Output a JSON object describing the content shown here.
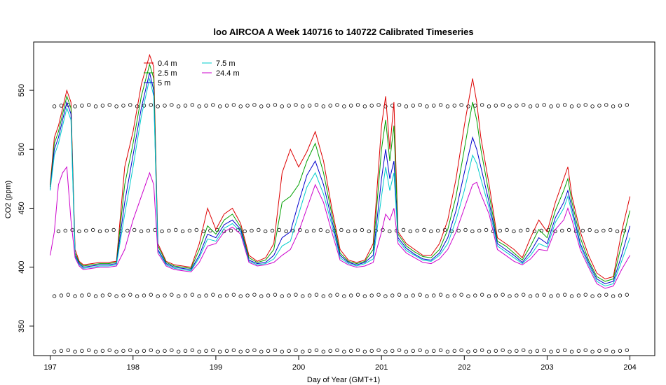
{
  "chart_data": {
    "type": "line",
    "title": "loo AIRCOA A  Week 140716 to 140722  Calibrated Timeseries",
    "xlabel": "Day of Year (GMT+1)",
    "ylabel": "CO2 (ppm)",
    "xlim": [
      196.8,
      204.3
    ],
    "ylim": [
      325,
      591
    ],
    "x_ticks": [
      "197",
      "198",
      "199",
      "200",
      "201",
      "202",
      "203",
      "204"
    ],
    "y_ticks": [
      "350",
      "400",
      "450",
      "500",
      "550"
    ],
    "x_tick_values": [
      197,
      198,
      199,
      200,
      201,
      202,
      203,
      204
    ],
    "y_tick_values": [
      350,
      400,
      450,
      500,
      550
    ],
    "legend_position": "top-left",
    "series": [
      {
        "name": "0.4 m",
        "color": "#dd0000",
        "x": [
          197.0,
          197.05,
          197.1,
          197.2,
          197.25,
          197.3,
          197.35,
          197.4,
          197.5,
          197.6,
          197.7,
          197.8,
          197.9,
          198.0,
          198.1,
          198.2,
          198.25,
          198.3,
          198.4,
          198.5,
          198.6,
          198.7,
          198.8,
          198.9,
          199.0,
          199.1,
          199.2,
          199.3,
          199.4,
          199.5,
          199.6,
          199.7,
          199.8,
          199.9,
          200.0,
          200.1,
          200.2,
          200.3,
          200.4,
          200.5,
          200.6,
          200.7,
          200.8,
          200.9,
          201.0,
          201.05,
          201.1,
          201.15,
          201.2,
          201.3,
          201.4,
          201.5,
          201.6,
          201.7,
          201.8,
          201.9,
          202.0,
          202.1,
          202.15,
          202.2,
          202.3,
          202.4,
          202.5,
          202.6,
          202.7,
          202.8,
          202.9,
          203.0,
          203.1,
          203.2,
          203.25,
          203.3,
          203.4,
          203.5,
          203.6,
          203.7,
          203.8,
          203.9,
          204.0
        ],
        "y": [
          470,
          510,
          520,
          550,
          540,
          415,
          405,
          402,
          403,
          404,
          404,
          405,
          485,
          515,
          555,
          580,
          570,
          420,
          405,
          402,
          401,
          400,
          420,
          450,
          432,
          445,
          450,
          437,
          410,
          405,
          408,
          420,
          480,
          500,
          485,
          498,
          515,
          490,
          450,
          415,
          406,
          404,
          406,
          420,
          520,
          545,
          500,
          540,
          430,
          420,
          415,
          410,
          410,
          420,
          440,
          475,
          520,
          560,
          540,
          510,
          470,
          425,
          420,
          415,
          408,
          425,
          440,
          430,
          455,
          475,
          485,
          460,
          430,
          410,
          395,
          390,
          392,
          430,
          460
        ]
      },
      {
        "name": "2.5 m",
        "color": "#00a000",
        "x": [
          197.0,
          197.05,
          197.1,
          197.2,
          197.25,
          197.3,
          197.35,
          197.4,
          197.5,
          197.6,
          197.7,
          197.8,
          197.9,
          198.0,
          198.1,
          198.2,
          198.25,
          198.3,
          198.4,
          198.5,
          198.6,
          198.7,
          198.8,
          198.9,
          199.0,
          199.1,
          199.2,
          199.3,
          199.4,
          199.5,
          199.6,
          199.7,
          199.8,
          199.9,
          200.0,
          200.1,
          200.2,
          200.3,
          200.4,
          200.5,
          200.6,
          200.7,
          200.8,
          200.9,
          201.0,
          201.05,
          201.1,
          201.15,
          201.2,
          201.3,
          201.4,
          201.5,
          201.6,
          201.7,
          201.8,
          201.9,
          202.0,
          202.1,
          202.15,
          202.2,
          202.3,
          202.4,
          202.5,
          202.6,
          202.7,
          202.8,
          202.9,
          203.0,
          203.1,
          203.2,
          203.25,
          203.3,
          203.4,
          203.5,
          203.6,
          203.7,
          203.8,
          203.9,
          204.0
        ],
        "y": [
          468,
          505,
          515,
          545,
          535,
          412,
          404,
          401,
          402,
          403,
          403,
          404,
          470,
          505,
          545,
          572,
          560,
          418,
          404,
          401,
          400,
          399,
          415,
          435,
          428,
          440,
          445,
          434,
          408,
          404,
          406,
          415,
          455,
          460,
          470,
          490,
          505,
          480,
          445,
          412,
          405,
          403,
          405,
          415,
          500,
          525,
          490,
          520,
          428,
          418,
          413,
          409,
          408,
          415,
          432,
          460,
          500,
          540,
          525,
          500,
          462,
          422,
          418,
          412,
          406,
          418,
          432,
          425,
          448,
          465,
          475,
          455,
          425,
          406,
          392,
          388,
          390,
          420,
          448
        ]
      },
      {
        "name": "5 m",
        "color": "#0000cc",
        "x": [
          197.0,
          197.05,
          197.1,
          197.2,
          197.25,
          197.3,
          197.35,
          197.4,
          197.5,
          197.6,
          197.7,
          197.8,
          197.9,
          198.0,
          198.1,
          198.2,
          198.25,
          198.3,
          198.4,
          198.5,
          198.6,
          198.7,
          198.8,
          198.9,
          199.0,
          199.1,
          199.2,
          199.3,
          199.4,
          199.5,
          199.6,
          199.7,
          199.8,
          199.9,
          200.0,
          200.1,
          200.2,
          200.3,
          200.4,
          200.5,
          200.6,
          200.7,
          200.8,
          200.9,
          201.0,
          201.05,
          201.1,
          201.15,
          201.2,
          201.3,
          201.4,
          201.5,
          201.6,
          201.7,
          201.8,
          201.9,
          202.0,
          202.1,
          202.15,
          202.2,
          202.3,
          202.4,
          202.5,
          202.6,
          202.7,
          202.8,
          202.9,
          203.0,
          203.1,
          203.2,
          203.25,
          203.3,
          203.4,
          203.5,
          203.6,
          203.7,
          203.8,
          203.9,
          204.0
        ],
        "y": [
          466,
          500,
          510,
          540,
          530,
          410,
          403,
          400,
          401,
          402,
          402,
          403,
          455,
          495,
          535,
          565,
          550,
          415,
          403,
          400,
          399,
          398,
          410,
          428,
          425,
          436,
          440,
          432,
          406,
          403,
          404,
          410,
          425,
          430,
          455,
          478,
          490,
          470,
          440,
          410,
          404,
          402,
          404,
          410,
          475,
          500,
          475,
          490,
          425,
          416,
          411,
          407,
          406,
          412,
          425,
          448,
          480,
          510,
          500,
          485,
          455,
          420,
          415,
          410,
          404,
          413,
          425,
          420,
          442,
          455,
          465,
          450,
          420,
          404,
          390,
          386,
          388,
          410,
          435
        ]
      },
      {
        "name": "7.5 m",
        "color": "#00cccc",
        "x": [
          197.0,
          197.05,
          197.1,
          197.2,
          197.25,
          197.3,
          197.35,
          197.4,
          197.5,
          197.6,
          197.7,
          197.8,
          197.9,
          198.0,
          198.1,
          198.2,
          198.25,
          198.3,
          198.4,
          198.5,
          198.6,
          198.7,
          198.8,
          198.9,
          199.0,
          199.1,
          199.2,
          199.3,
          199.4,
          199.5,
          199.6,
          199.7,
          199.8,
          199.9,
          200.0,
          200.1,
          200.2,
          200.3,
          200.4,
          200.5,
          200.6,
          200.7,
          200.8,
          200.9,
          201.0,
          201.05,
          201.1,
          201.15,
          201.2,
          201.3,
          201.4,
          201.5,
          201.6,
          201.7,
          201.8,
          201.9,
          202.0,
          202.1,
          202.15,
          202.2,
          202.3,
          202.4,
          202.5,
          202.6,
          202.7,
          202.8,
          202.9,
          203.0,
          203.1,
          203.2,
          203.25,
          203.3,
          203.4,
          203.5,
          203.6,
          203.7,
          203.8,
          203.9,
          204.0
        ],
        "y": [
          465,
          495,
          505,
          535,
          525,
          409,
          402,
          399,
          400,
          401,
          401,
          402,
          445,
          485,
          528,
          560,
          545,
          414,
          402,
          399,
          398,
          397,
          408,
          424,
          422,
          433,
          437,
          430,
          405,
          402,
          403,
          407,
          418,
          422,
          445,
          468,
          480,
          462,
          436,
          408,
          403,
          401,
          403,
          407,
          460,
          485,
          465,
          480,
          423,
          414,
          410,
          406,
          405,
          410,
          420,
          440,
          465,
          495,
          488,
          475,
          450,
          418,
          413,
          408,
          403,
          410,
          420,
          417,
          438,
          450,
          460,
          446,
          418,
          402,
          388,
          384,
          386,
          405,
          425
        ]
      },
      {
        "name": "24.4 m",
        "color": "#cc00cc",
        "x": [
          197.0,
          197.05,
          197.1,
          197.15,
          197.2,
          197.25,
          197.3,
          197.35,
          197.4,
          197.5,
          197.6,
          197.7,
          197.8,
          197.9,
          198.0,
          198.1,
          198.2,
          198.25,
          198.3,
          198.4,
          198.5,
          198.6,
          198.7,
          198.8,
          198.9,
          199.0,
          199.1,
          199.2,
          199.3,
          199.4,
          199.5,
          199.6,
          199.7,
          199.8,
          199.9,
          200.0,
          200.1,
          200.2,
          200.3,
          200.4,
          200.5,
          200.6,
          200.7,
          200.8,
          200.9,
          201.0,
          201.05,
          201.1,
          201.15,
          201.2,
          201.3,
          201.4,
          201.5,
          201.6,
          201.7,
          201.8,
          201.9,
          202.0,
          202.1,
          202.15,
          202.2,
          202.3,
          202.4,
          202.5,
          202.6,
          202.7,
          202.8,
          202.9,
          203.0,
          203.1,
          203.2,
          203.25,
          203.3,
          203.4,
          203.5,
          203.6,
          203.7,
          203.8,
          203.9,
          204.0
        ],
        "y": [
          410,
          430,
          470,
          480,
          485,
          440,
          408,
          401,
          398,
          399,
          400,
          400,
          401,
          415,
          440,
          460,
          480,
          470,
          412,
          401,
          398,
          397,
          396,
          404,
          418,
          420,
          430,
          434,
          428,
          404,
          401,
          402,
          404,
          410,
          415,
          430,
          450,
          470,
          455,
          430,
          406,
          402,
          400,
          401,
          404,
          430,
          445,
          440,
          450,
          420,
          412,
          408,
          404,
          403,
          407,
          415,
          430,
          450,
          470,
          472,
          462,
          445,
          415,
          410,
          405,
          402,
          407,
          415,
          414,
          432,
          440,
          450,
          440,
          415,
          400,
          386,
          382,
          384,
          398,
          410
        ]
      }
    ],
    "marker_rows": [
      {
        "y": 537,
        "x_start": 197.05,
        "x_end": 204.0,
        "step": 0.0833
      },
      {
        "y": 431,
        "x_start": 197.1,
        "x_end": 204.0,
        "step": 0.0833
      },
      {
        "y": 376,
        "x_start": 197.05,
        "x_end": 204.0,
        "step": 0.0833
      },
      {
        "y": 329,
        "x_start": 197.05,
        "x_end": 204.0,
        "step": 0.0833
      }
    ]
  }
}
